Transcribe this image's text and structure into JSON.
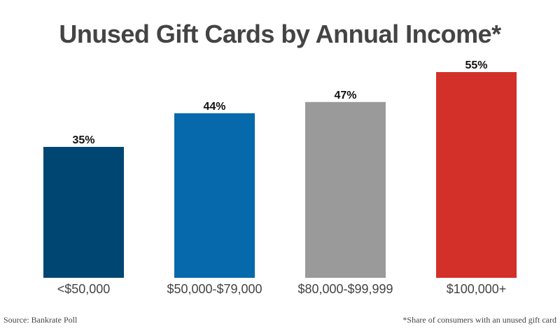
{
  "chart_data": {
    "type": "bar",
    "title": "Unused Gift Cards by Annual Income*",
    "categories": [
      "<$50,000",
      "$50,000-$79,000",
      "$80,000-$99,999",
      "$100,000+"
    ],
    "values": [
      35,
      44,
      47,
      55
    ],
    "value_labels": [
      "35%",
      "44%",
      "47%",
      "55%"
    ],
    "colors": [
      "#004672",
      "#0569AB",
      "#9A9A9A",
      "#D3302A"
    ],
    "xlabel": "",
    "ylabel": "",
    "ylim": [
      0,
      55
    ],
    "grid": false
  },
  "footer": {
    "source": "Source: Bankrate Poll",
    "note": "*Share of consumers with an unused gift card"
  }
}
